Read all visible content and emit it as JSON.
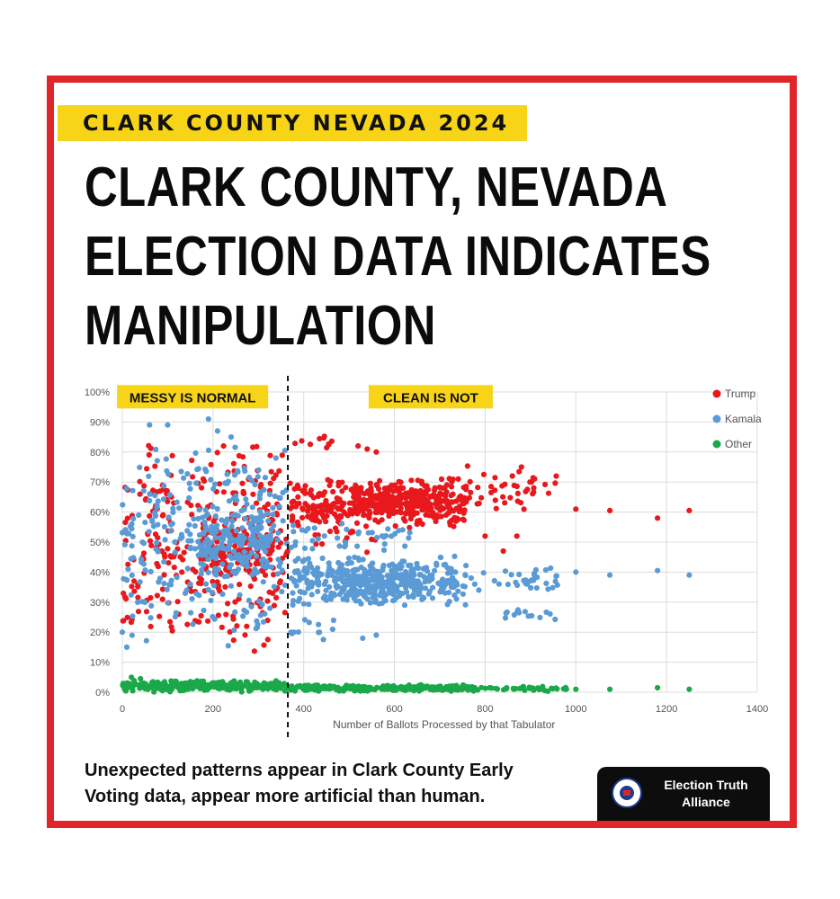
{
  "kicker": "CLARK COUNTY NEVADA 2024",
  "headline": {
    "line1": "CLARK COUNTY, NEVADA",
    "line2": "ELECTION DATA INDICATES",
    "line3": "MANIPULATION"
  },
  "caption": {
    "line1": "Unexpected patterns appear in Clark County Early",
    "line2": "Voting data, appear more artificial than human."
  },
  "logo": {
    "name_line1": "Election Truth",
    "name_line2": "Alliance"
  },
  "colors": {
    "frame": "#e0262b",
    "highlight": "#f7d417",
    "trump": "#e8181c",
    "kamala": "#5b9bd5",
    "other": "#1aa84a"
  },
  "chart_data": {
    "type": "scatter",
    "title": "",
    "xlabel": "Number of Ballots Processed by that Tabulator",
    "ylabel": "",
    "xlim": [
      0,
      1400
    ],
    "ylim": [
      0,
      100
    ],
    "x_ticks": [
      0,
      200,
      400,
      600,
      800,
      1000,
      1200,
      1400
    ],
    "y_ticks": [
      "0%",
      "10%",
      "20%",
      "30%",
      "40%",
      "50%",
      "60%",
      "70%",
      "80%",
      "90%",
      "100%"
    ],
    "grid": true,
    "legend_position": "top-right",
    "divider_x": 365,
    "annotations": [
      {
        "text": "MESSY IS NORMAL",
        "x_center": 155,
        "y": 99
      },
      {
        "text": "CLEAN IS NOT",
        "x_center": 680,
        "y": 99
      }
    ],
    "series": [
      {
        "name": "Trump",
        "color": "#e8181c",
        "clusters": [
          {
            "cx": [
              0,
              365
            ],
            "cy": [
              10,
              86
            ],
            "n": 300,
            "shape": "uniform"
          },
          {
            "cx": [
              170,
              330
            ],
            "cy": [
              35,
              60
            ],
            "n": 140,
            "shape": "uniform"
          },
          {
            "cx": [
              370,
              760
            ],
            "cy": [
              54,
              72
            ],
            "n": 360,
            "shape": "uniform"
          },
          {
            "cx": [
              500,
              680
            ],
            "cy": [
              58,
              70
            ],
            "n": 120,
            "shape": "uniform"
          },
          {
            "cx": [
              380,
              470
            ],
            "cy": [
              80,
              86
            ],
            "n": 10,
            "shape": "uniform"
          },
          {
            "cx": [
              760,
              960
            ],
            "cy": [
              58,
              76
            ],
            "n": 40,
            "shape": "uniform"
          },
          {
            "cx": [
              400,
              560
            ],
            "cy": [
              45,
              55
            ],
            "n": 15,
            "shape": "uniform"
          }
        ],
        "points": [
          [
            1000,
            61
          ],
          [
            1075,
            60.5
          ],
          [
            1180,
            58
          ],
          [
            1250,
            60.5
          ],
          [
            860,
            72
          ],
          [
            880,
            75
          ],
          [
            540,
            81
          ],
          [
            560,
            80
          ],
          [
            520,
            82
          ],
          [
            800,
            52
          ],
          [
            840,
            47
          ],
          [
            870,
            52
          ]
        ]
      },
      {
        "name": "Kamala",
        "color": "#5b9bd5",
        "clusters": [
          {
            "cx": [
              0,
              365
            ],
            "cy": [
              14,
              88
            ],
            "n": 280,
            "shape": "uniform"
          },
          {
            "cx": [
              170,
              330
            ],
            "cy": [
              38,
              62
            ],
            "n": 150,
            "shape": "uniform"
          },
          {
            "cx": [
              370,
              760
            ],
            "cy": [
              28,
              46
            ],
            "n": 340,
            "shape": "uniform"
          },
          {
            "cx": [
              480,
              660
            ],
            "cy": [
              30,
              42
            ],
            "n": 130,
            "shape": "uniform"
          },
          {
            "cx": [
              760,
              960
            ],
            "cy": [
              32,
              42
            ],
            "n": 35,
            "shape": "uniform"
          },
          {
            "cx": [
              840,
              960
            ],
            "cy": [
              24,
              28
            ],
            "n": 15,
            "shape": "uniform"
          },
          {
            "cx": [
              370,
              640
            ],
            "cy": [
              45,
              58
            ],
            "n": 40,
            "shape": "uniform"
          },
          {
            "cx": [
              370,
              470
            ],
            "cy": [
              15,
              25
            ],
            "n": 12,
            "shape": "uniform"
          }
        ],
        "points": [
          [
            60,
            89
          ],
          [
            100,
            89
          ],
          [
            190,
            91
          ],
          [
            210,
            87
          ],
          [
            240,
            85
          ],
          [
            1000,
            40
          ],
          [
            1075,
            39
          ],
          [
            1180,
            40.5
          ],
          [
            1250,
            39
          ],
          [
            530,
            18
          ],
          [
            560,
            19
          ],
          [
            0,
            20
          ],
          [
            10,
            15
          ]
        ]
      },
      {
        "name": "Other",
        "color": "#1aa84a",
        "clusters": [
          {
            "cx": [
              0,
              365
            ],
            "cy": [
              0,
              4
            ],
            "n": 260,
            "shape": "uniform"
          },
          {
            "cx": [
              370,
              780
            ],
            "cy": [
              0.3,
              2.5
            ],
            "n": 260,
            "shape": "uniform"
          },
          {
            "cx": [
              780,
              980
            ],
            "cy": [
              0.3,
              2
            ],
            "n": 40,
            "shape": "uniform"
          }
        ],
        "points": [
          [
            20,
            5
          ],
          [
            40,
            4.5
          ],
          [
            1000,
            1
          ],
          [
            1075,
            1
          ],
          [
            1180,
            1.5
          ],
          [
            1250,
            1
          ]
        ]
      }
    ]
  }
}
